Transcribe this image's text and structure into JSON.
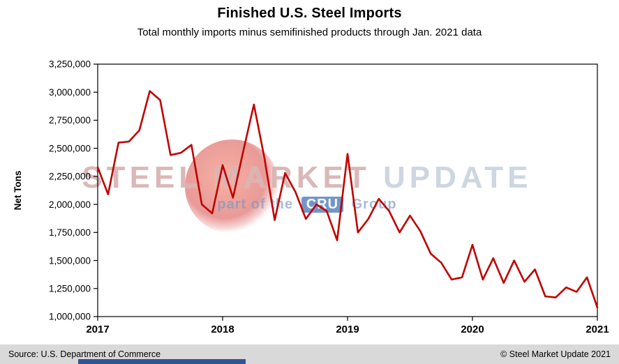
{
  "title": "Finished U.S. Steel Imports",
  "subtitle": "Total monthly imports minus semifinished products through Jan. 2021 data",
  "watermark": {
    "brand_primary": "STEEL MARKET",
    "brand_secondary": "UPDATE",
    "tagline_prefix": "part of the",
    "tagline_badge": "CRU",
    "tagline_suffix": "Group"
  },
  "footer": {
    "source": "Source: U.S. Department of Commerce",
    "copyright": "© Steel Market Update 2021"
  },
  "chart_data": {
    "type": "line",
    "title": "Finished U.S. Steel Imports",
    "xlabel": "",
    "ylabel": "Net Tons",
    "ylim": [
      1000000,
      3250000
    ],
    "ytick_step": 250000,
    "x_tick_labels": [
      "2017",
      "2018",
      "2019",
      "2020",
      "2021"
    ],
    "x_tick_month_index": [
      0,
      12,
      24,
      36,
      48
    ],
    "grid": false,
    "line_color": "#C00000",
    "months": [
      "Jan 2017",
      "Feb 2017",
      "Mar 2017",
      "Apr 2017",
      "May 2017",
      "Jun 2017",
      "Jul 2017",
      "Aug 2017",
      "Sep 2017",
      "Oct 2017",
      "Nov 2017",
      "Dec 2017",
      "Jan 2018",
      "Feb 2018",
      "Mar 2018",
      "Apr 2018",
      "May 2018",
      "Jun 2018",
      "Jul 2018",
      "Aug 2018",
      "Sep 2018",
      "Oct 2018",
      "Nov 2018",
      "Dec 2018",
      "Jan 2019",
      "Feb 2019",
      "Mar 2019",
      "Apr 2019",
      "May 2019",
      "Jun 2019",
      "Jul 2019",
      "Aug 2019",
      "Sep 2019",
      "Oct 2019",
      "Nov 2019",
      "Dec 2019",
      "Jan 2020",
      "Feb 2020",
      "Mar 2020",
      "Apr 2020",
      "May 2020",
      "Jun 2020",
      "Jul 2020",
      "Aug 2020",
      "Sep 2020",
      "Oct 2020",
      "Nov 2020",
      "Dec 2020",
      "Jan 2021"
    ],
    "values": [
      2330000,
      2090000,
      2550000,
      2560000,
      2660000,
      3010000,
      2930000,
      2440000,
      2460000,
      2530000,
      2000000,
      1920000,
      2350000,
      2060000,
      2480000,
      2890000,
      2420000,
      1860000,
      2280000,
      2110000,
      1870000,
      2000000,
      1940000,
      1680000,
      2450000,
      1750000,
      1870000,
      2050000,
      1940000,
      1750000,
      1900000,
      1760000,
      1560000,
      1480000,
      1330000,
      1350000,
      1640000,
      1330000,
      1520000,
      1300000,
      1500000,
      1310000,
      1420000,
      1180000,
      1170000,
      1260000,
      1220000,
      1350000,
      1080000
    ]
  }
}
